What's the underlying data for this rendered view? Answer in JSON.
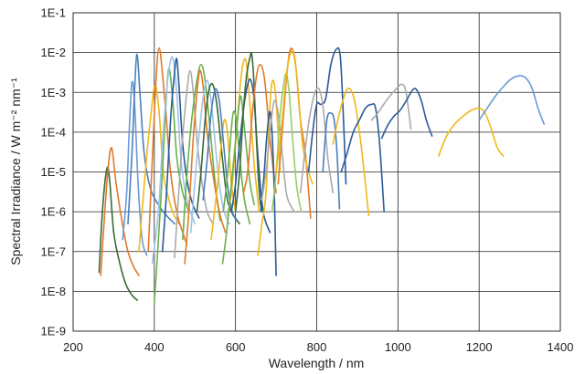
{
  "chart_data": {
    "type": "line",
    "title": "",
    "xlabel": "Wavelength / nm",
    "ylabel": "Spectral Irradiance / W m⁻² nm⁻¹",
    "xlim": [
      200,
      1400
    ],
    "ylim": [
      1e-09,
      0.1
    ],
    "yscale": "log",
    "grid": true,
    "legend": "none",
    "x_ticks": [
      200,
      400,
      600,
      800,
      1000,
      1200,
      1400
    ],
    "x_tick_labels": [
      "200",
      "400",
      "600",
      "800",
      "1000",
      "1200",
      "1400"
    ],
    "y_ticks": [
      1e-09,
      1e-08,
      1e-07,
      1e-06,
      1e-05,
      0.0001,
      0.001,
      0.01,
      0.1
    ],
    "y_tick_labels": [
      "1E-9",
      "1E-8",
      "1E-7",
      "1E-6",
      "1E-5",
      "1E-4",
      "1E-3",
      "1E-2",
      "1E-1"
    ],
    "series": [
      {
        "color": "#3a6a38",
        "x": [
          264,
          272,
          283,
          290,
          300,
          315,
          330,
          345,
          358
        ],
        "y": [
          3e-08,
          1e-06,
          1.2e-05,
          6e-06,
          3e-07,
          5e-08,
          1.5e-08,
          8e-09,
          6e-09
        ]
      },
      {
        "color": "#e07a2a",
        "x": [
          268,
          276,
          286,
          295,
          305,
          320,
          335,
          350,
          362
        ],
        "y": [
          2.5e-08,
          5e-07,
          1.2e-05,
          4e-05,
          6e-06,
          6e-07,
          1e-07,
          4e-08,
          2.5e-08
        ]
      },
      {
        "color": "#6a9ad6",
        "x": [
          322,
          332,
          338,
          345,
          352,
          360,
          370,
          382
        ],
        "y": [
          2e-07,
          3e-06,
          0.0001,
          0.0018,
          0.0004,
          5e-06,
          2e-07,
          8e-08
        ]
      },
      {
        "color": "#4a7fbe",
        "x": [
          335,
          345,
          350,
          357,
          365,
          375,
          390,
          410,
          430,
          450
        ],
        "y": [
          5e-07,
          3e-05,
          0.0005,
          0.009,
          0.0008,
          3e-05,
          4e-06,
          1.5e-06,
          8e-07,
          5e-07
        ]
      },
      {
        "color": "#f0b81a",
        "x": [
          362,
          372,
          382,
          392,
          402,
          412,
          422,
          432,
          445,
          460
        ],
        "y": [
          1e-07,
          2e-06,
          3e-05,
          0.0003,
          0.0015,
          0.0003,
          1e-05,
          3e-06,
          1e-06,
          5e-07
        ]
      },
      {
        "color": "#e07a2a",
        "x": [
          385,
          395,
          405,
          412,
          420,
          430,
          440,
          455,
          470,
          480
        ],
        "y": [
          1e-07,
          2e-05,
          0.003,
          0.013,
          0.003,
          0.0002,
          1e-05,
          1e-06,
          3e-07,
          1.5e-07
        ]
      },
      {
        "color": "#6ab04c",
        "x": [
          400,
          410,
          420,
          428,
          436,
          446,
          456,
          470,
          485
        ],
        "y": [
          5e-09,
          2e-07,
          1e-05,
          0.0004,
          0.004,
          0.0005,
          2e-05,
          3e-06,
          1e-06
        ]
      },
      {
        "color": "#9ec3ea",
        "x": [
          395,
          410,
          420,
          430,
          438,
          446,
          455,
          466,
          480,
          500
        ],
        "y": [
          5e-08,
          1e-06,
          5e-05,
          0.001,
          0.005,
          0.007,
          0.001,
          2e-05,
          2e-06,
          5e-07
        ]
      },
      {
        "color": "#2a5a9a",
        "x": [
          420,
          430,
          440,
          448,
          455,
          462,
          470,
          482,
          495,
          510
        ],
        "y": [
          1e-07,
          3e-06,
          0.0002,
          0.002,
          0.007,
          0.0009,
          5e-05,
          5e-06,
          1.5e-06,
          7e-07
        ]
      },
      {
        "color": "#aaaaaa",
        "x": [
          450,
          460,
          470,
          480,
          488,
          496,
          506,
          518,
          530,
          545
        ],
        "y": [
          7e-08,
          3e-06,
          8e-05,
          0.001,
          0.0035,
          0.001,
          5e-05,
          5e-06,
          1e-06,
          5e-07
        ]
      },
      {
        "color": "#6ab04c",
        "x": [
          470,
          480,
          492,
          505,
          515,
          525,
          538,
          550,
          562
        ],
        "y": [
          2e-07,
          8e-06,
          0.0002,
          0.002,
          0.005,
          0.002,
          0.0001,
          5e-06,
          6e-07
        ]
      },
      {
        "color": "#e07a2a",
        "x": [
          475,
          485,
          495,
          505,
          512,
          520,
          530,
          545,
          560,
          575
        ],
        "y": [
          5e-08,
          1e-06,
          5e-05,
          0.001,
          0.0035,
          0.0015,
          0.0001,
          8e-06,
          1e-06,
          3e-07
        ]
      },
      {
        "color": "#9ec3ea",
        "x": [
          490,
          500,
          510,
          520,
          530,
          540,
          550,
          560,
          572,
          585
        ],
        "y": [
          3e-07,
          6e-06,
          8e-05,
          0.0007,
          0.002,
          0.0006,
          5e-05,
          5e-06,
          1e-06,
          5e-07
        ]
      },
      {
        "color": "#3a6a38",
        "x": [
          505,
          515,
          525,
          535,
          545,
          555,
          568,
          580,
          595,
          610
        ],
        "y": [
          1e-06,
          1e-05,
          0.0002,
          0.0012,
          0.0015,
          0.0004,
          2e-05,
          2e-06,
          8e-07,
          5e-07
        ]
      },
      {
        "color": "#f0b81a",
        "x": [
          540,
          548,
          556,
          564,
          572,
          580,
          590,
          600
        ],
        "y": [
          2e-07,
          1e-06,
          5e-06,
          4e-05,
          0.0002,
          0.0001,
          5e-06,
          1e-06
        ]
      },
      {
        "color": "#4a7fbe",
        "x": [
          520,
          530,
          540,
          550,
          560,
          570,
          580,
          592,
          605
        ],
        "y": [
          2e-06,
          2e-05,
          0.0003,
          0.0012,
          0.0006,
          6e-05,
          5e-06,
          1e-06,
          6e-07
        ]
      },
      {
        "color": "#6ab04c",
        "x": [
          570,
          578,
          586,
          594,
          602,
          612,
          622,
          635
        ],
        "y": [
          1e-06,
          5e-06,
          4e-05,
          0.0003,
          0.0002,
          1.5e-05,
          2e-06,
          5e-07
        ]
      },
      {
        "color": "#f0b81a",
        "x": [
          580,
          590,
          600,
          610,
          618,
          626,
          634,
          645,
          658
        ],
        "y": [
          8e-07,
          3e-06,
          5e-05,
          0.001,
          0.005,
          0.006,
          0.0008,
          2e-05,
          1e-06
        ]
      },
      {
        "color": "#6ab04c",
        "x": [
          568,
          578,
          590,
          602,
          612,
          620,
          628,
          636,
          646
        ],
        "y": [
          5e-08,
          3e-07,
          5e-06,
          0.0001,
          0.0008,
          0.0002,
          3e-05,
          5e-06,
          1.5e-06
        ]
      },
      {
        "color": "#2a5a9a",
        "x": [
          590,
          600,
          610,
          620,
          630,
          638,
          646,
          656,
          668,
          685
        ],
        "y": [
          1e-06,
          5e-06,
          5e-05,
          0.0004,
          0.0016,
          0.002,
          0.0006,
          2e-05,
          1e-06,
          3e-07
        ]
      },
      {
        "color": "#3a6a38",
        "x": [
          600,
          610,
          620,
          628,
          636,
          640,
          645,
          652,
          660,
          668
        ],
        "y": [
          1e-06,
          1e-05,
          0.0004,
          0.003,
          0.008,
          0.009,
          0.002,
          5e-05,
          2e-06,
          1e-06
        ]
      },
      {
        "color": "#e07a2a",
        "x": [
          620,
          630,
          640,
          650,
          660,
          672,
          686,
          700
        ],
        "y": [
          3e-06,
          1e-05,
          0.0002,
          0.002,
          0.005,
          0.002,
          5e-05,
          3e-06
        ]
      },
      {
        "color": "#f0b81a",
        "x": [
          655,
          665,
          675,
          685,
          692,
          700,
          710
        ],
        "y": [
          8e-08,
          5e-07,
          3e-06,
          0.0005,
          0.002,
          0.0006,
          1e-05
        ]
      },
      {
        "color": "#2a5a9a",
        "x": [
          662,
          670,
          678,
          686,
          694,
          700
        ],
        "y": [
          1e-06,
          8e-06,
          0.0001,
          0.0003,
          1e-05,
          2.5e-08
        ]
      },
      {
        "color": "#aaaaaa",
        "x": [
          665,
          675,
          685,
          695,
          705,
          715,
          725,
          735,
          745
        ],
        "y": [
          2e-06,
          1e-05,
          0.0001,
          0.0006,
          0.0003,
          3e-05,
          3e-06,
          1.5e-06,
          1e-06
        ]
      },
      {
        "color": "#9acd6a",
        "x": [
          690,
          700,
          710,
          718,
          725,
          732,
          740,
          750,
          762
        ],
        "y": [
          1e-06,
          1e-05,
          0.0003,
          0.0015,
          0.003,
          0.001,
          8e-05,
          5e-06,
          1e-06
        ]
      },
      {
        "color": "#e07a2a",
        "x": [
          705,
          715,
          725,
          733,
          740,
          748,
          760,
          772,
          785
        ],
        "y": [
          5e-06,
          0.0001,
          0.002,
          0.01,
          0.012,
          0.005,
          0.0002,
          3e-05,
          7e-07
        ]
      },
      {
        "color": "#f0b81a",
        "x": [
          700,
          712,
          724,
          733,
          742,
          752,
          765,
          780,
          790
        ],
        "y": [
          1e-05,
          0.0001,
          0.002,
          0.008,
          0.01,
          0.002,
          5e-05,
          1e-05,
          5e-06
        ]
      },
      {
        "color": "#2a5a9a",
        "x": [
          780,
          790,
          800,
          810,
          822,
          835,
          848,
          858,
          866,
          872
        ],
        "y": [
          1e-05,
          0.0001,
          0.0005,
          0.0005,
          0.0007,
          0.005,
          0.012,
          0.008,
          0.0002,
          5e-06
        ]
      },
      {
        "color": "#aaaaaa",
        "x": [
          760,
          772,
          784,
          796,
          806,
          816,
          828,
          840
        ],
        "y": [
          3e-06,
          4e-05,
          0.0003,
          0.001,
          0.0012,
          0.0004,
          2e-05,
          3e-06
        ]
      },
      {
        "color": "#4a7fbe",
        "x": [
          815,
          825,
          835,
          843,
          850,
          856
        ],
        "y": [
          1e-05,
          0.0002,
          0.0003,
          0.0002,
          3e-05,
          1.2e-06
        ]
      },
      {
        "color": "#f0b81a",
        "x": [
          840,
          852,
          864,
          875,
          885,
          895,
          908,
          920,
          928
        ],
        "y": [
          5e-05,
          0.0002,
          0.0006,
          0.0012,
          0.0011,
          0.0005,
          6e-05,
          5e-06,
          8e-07
        ]
      },
      {
        "color": "#2a5a9a",
        "x": [
          860,
          875,
          890,
          905,
          920,
          935,
          945,
          955,
          966
        ],
        "y": [
          1e-05,
          3e-05,
          0.0001,
          0.0002,
          0.0004,
          0.0005,
          0.0004,
          5e-05,
          1e-06
        ]
      },
      {
        "color": "#aaaaaa",
        "x": [
          935,
          950,
          965,
          980,
          995,
          1010,
          1020,
          1032
        ],
        "y": [
          0.0002,
          0.0003,
          0.0005,
          0.0008,
          0.0012,
          0.0016,
          0.001,
          0.00012
        ]
      },
      {
        "color": "#2a5a9a",
        "x": [
          960,
          975,
          990,
          1005,
          1020,
          1035,
          1045,
          1058,
          1070,
          1084
        ],
        "y": [
          7e-05,
          0.00015,
          0.00025,
          0.00035,
          0.0006,
          0.0011,
          0.0012,
          0.0006,
          0.0002,
          8e-05
        ]
      },
      {
        "color": "#f0b81a",
        "x": [
          1100,
          1120,
          1140,
          1160,
          1180,
          1200,
          1215,
          1230,
          1245,
          1260
        ],
        "y": [
          2.5e-05,
          8e-05,
          0.00016,
          0.00025,
          0.00035,
          0.0004,
          0.0003,
          0.00012,
          4e-05,
          2.5e-05
        ]
      },
      {
        "color": "#6a9ad6",
        "x": [
          1200,
          1220,
          1240,
          1260,
          1280,
          1300,
          1315,
          1330,
          1345,
          1360
        ],
        "y": [
          0.0002,
          0.0004,
          0.0008,
          0.0014,
          0.0022,
          0.0026,
          0.0023,
          0.0013,
          0.0004,
          0.00016
        ]
      }
    ]
  }
}
